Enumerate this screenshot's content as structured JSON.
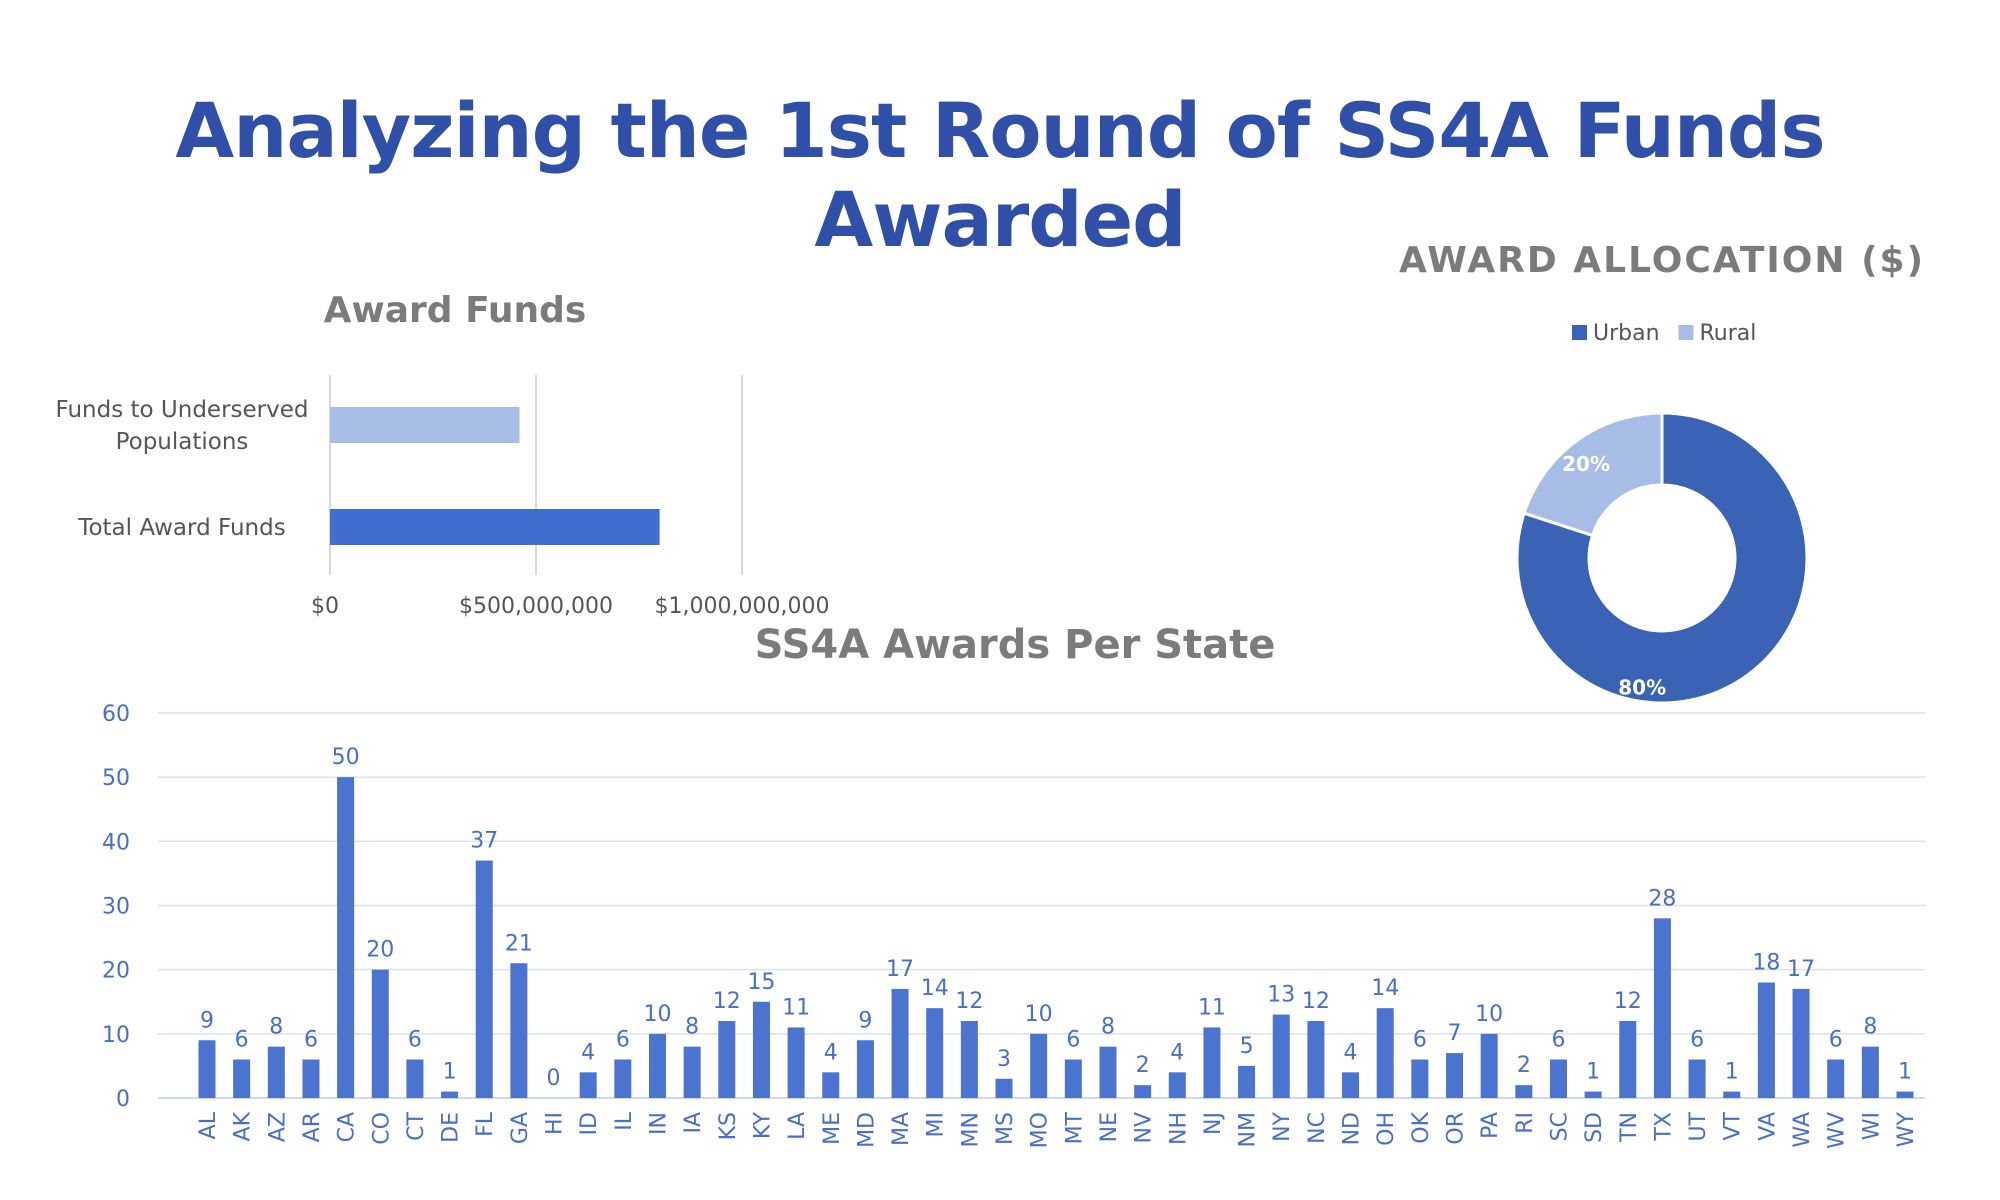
{
  "page": {
    "title": "Analyzing the 1st Round of SS4A Funds Awarded"
  },
  "colors": {
    "title": "#2F4FA8",
    "bar_dark": "#3F6DD1",
    "bar_light": "#A8BDE6",
    "urban": "#3A63B5",
    "rural": "#A8BDE6",
    "state_bar": "#4A74D0",
    "axis_text": "#4A6FC8",
    "chart_title": "#7b7b7b"
  },
  "chart_data": [
    {
      "type": "bar",
      "orientation": "horizontal",
      "title": "Award Funds",
      "categories": [
        "Funds to Underserved Populations",
        "Total Award Funds"
      ],
      "values": [
        460000000,
        800000000
      ],
      "xlim": [
        0,
        1000000000
      ],
      "xticks": [
        "$0",
        "$500,000,000",
        "$1,000,000,000"
      ],
      "grid": true,
      "legend": "none"
    },
    {
      "type": "pie",
      "style": "donut",
      "title": "AWARD ALLOCATION ($)",
      "labels": [
        "Urban",
        "Rural"
      ],
      "values": [
        80,
        20
      ],
      "data_labels": [
        "80%",
        "20%"
      ],
      "legend": "top"
    },
    {
      "type": "bar",
      "title": "SS4A Awards Per State",
      "categories": [
        "AL",
        "AK",
        "AZ",
        "AR",
        "CA",
        "CO",
        "CT",
        "DE",
        "FL",
        "GA",
        "HI",
        "ID",
        "IL",
        "IN",
        "IA",
        "KS",
        "KY",
        "LA",
        "ME",
        "MD",
        "MA",
        "MI",
        "MN",
        "MS",
        "MO",
        "MT",
        "NE",
        "NV",
        "NH",
        "NJ",
        "NM",
        "NY",
        "NC",
        "ND",
        "OH",
        "OK",
        "OR",
        "PA",
        "RI",
        "SC",
        "SD",
        "TN",
        "TX",
        "UT",
        "VT",
        "VA",
        "WA",
        "WV",
        "WI",
        "WY"
      ],
      "values": [
        9,
        6,
        8,
        6,
        50,
        20,
        6,
        1,
        37,
        21,
        0,
        4,
        6,
        10,
        8,
        12,
        15,
        11,
        4,
        9,
        17,
        14,
        12,
        3,
        10,
        6,
        8,
        2,
        4,
        11,
        5,
        13,
        12,
        4,
        14,
        6,
        7,
        10,
        2,
        6,
        1,
        12,
        28,
        6,
        1,
        18,
        17,
        6,
        8,
        1
      ],
      "ylim": [
        0,
        60
      ],
      "yticks": [
        0,
        10,
        20,
        30,
        40,
        50,
        60
      ],
      "grid": true,
      "legend": "none"
    }
  ]
}
